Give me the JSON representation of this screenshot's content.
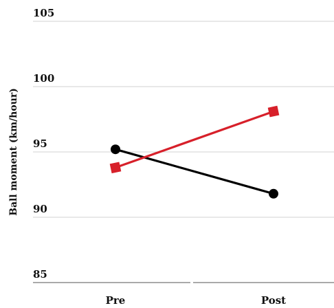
{
  "chart_data": {
    "type": "line",
    "categories": [
      "Pre",
      "Post"
    ],
    "series": [
      {
        "values": [
          95.2,
          91.8
        ],
        "color": "#000000",
        "marker": "circle"
      },
      {
        "values": [
          93.8,
          98.1
        ],
        "color": "#d7202a",
        "marker": "square"
      }
    ],
    "title": "",
    "xlabel": "",
    "ylabel": "Ball moment (km/hour)",
    "ylim": [
      85,
      105
    ],
    "yticks": [
      85,
      90,
      95,
      100,
      105
    ],
    "grid": true,
    "legend": "none"
  }
}
